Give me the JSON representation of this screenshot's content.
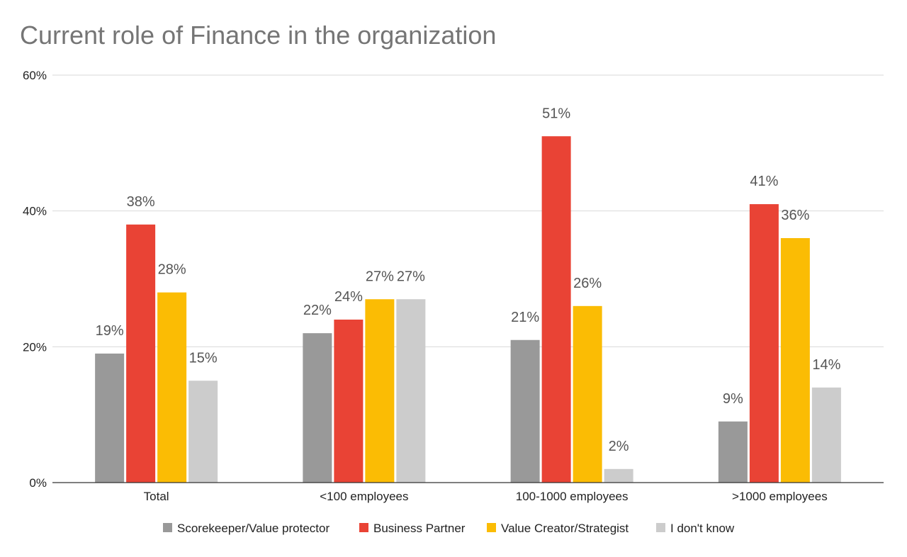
{
  "chart_data": {
    "type": "bar",
    "title": "Current role of Finance in the organization",
    "xlabel": "",
    "ylabel": "",
    "ylim": [
      0,
      60
    ],
    "yticks": [
      0,
      20,
      40,
      60
    ],
    "ytick_labels": [
      "0%",
      "20%",
      "40%",
      "60%"
    ],
    "grid": true,
    "legend_position": "bottom",
    "categories": [
      "Total",
      "<100 employees",
      "100-1000 employees",
      ">1000 employees"
    ],
    "series": [
      {
        "name": "Scorekeeper/Value protector",
        "color": "#999999",
        "values": [
          19,
          22,
          21,
          9
        ],
        "labels": [
          "19%",
          "22%",
          "21%",
          "9%"
        ]
      },
      {
        "name": "Business Partner",
        "color": "#e94335",
        "values": [
          38,
          24,
          51,
          41
        ],
        "labels": [
          "38%",
          "24%",
          "51%",
          "41%"
        ]
      },
      {
        "name": "Value Creator/Strategist",
        "color": "#fbbc04",
        "values": [
          28,
          27,
          26,
          36
        ],
        "labels": [
          "28%",
          "27%",
          "26%",
          "36%"
        ]
      },
      {
        "name": "I don't know",
        "color": "#cccccc",
        "values": [
          15,
          27,
          2,
          14
        ],
        "labels": [
          "15%",
          "27%",
          "2%",
          "14%"
        ]
      }
    ]
  }
}
